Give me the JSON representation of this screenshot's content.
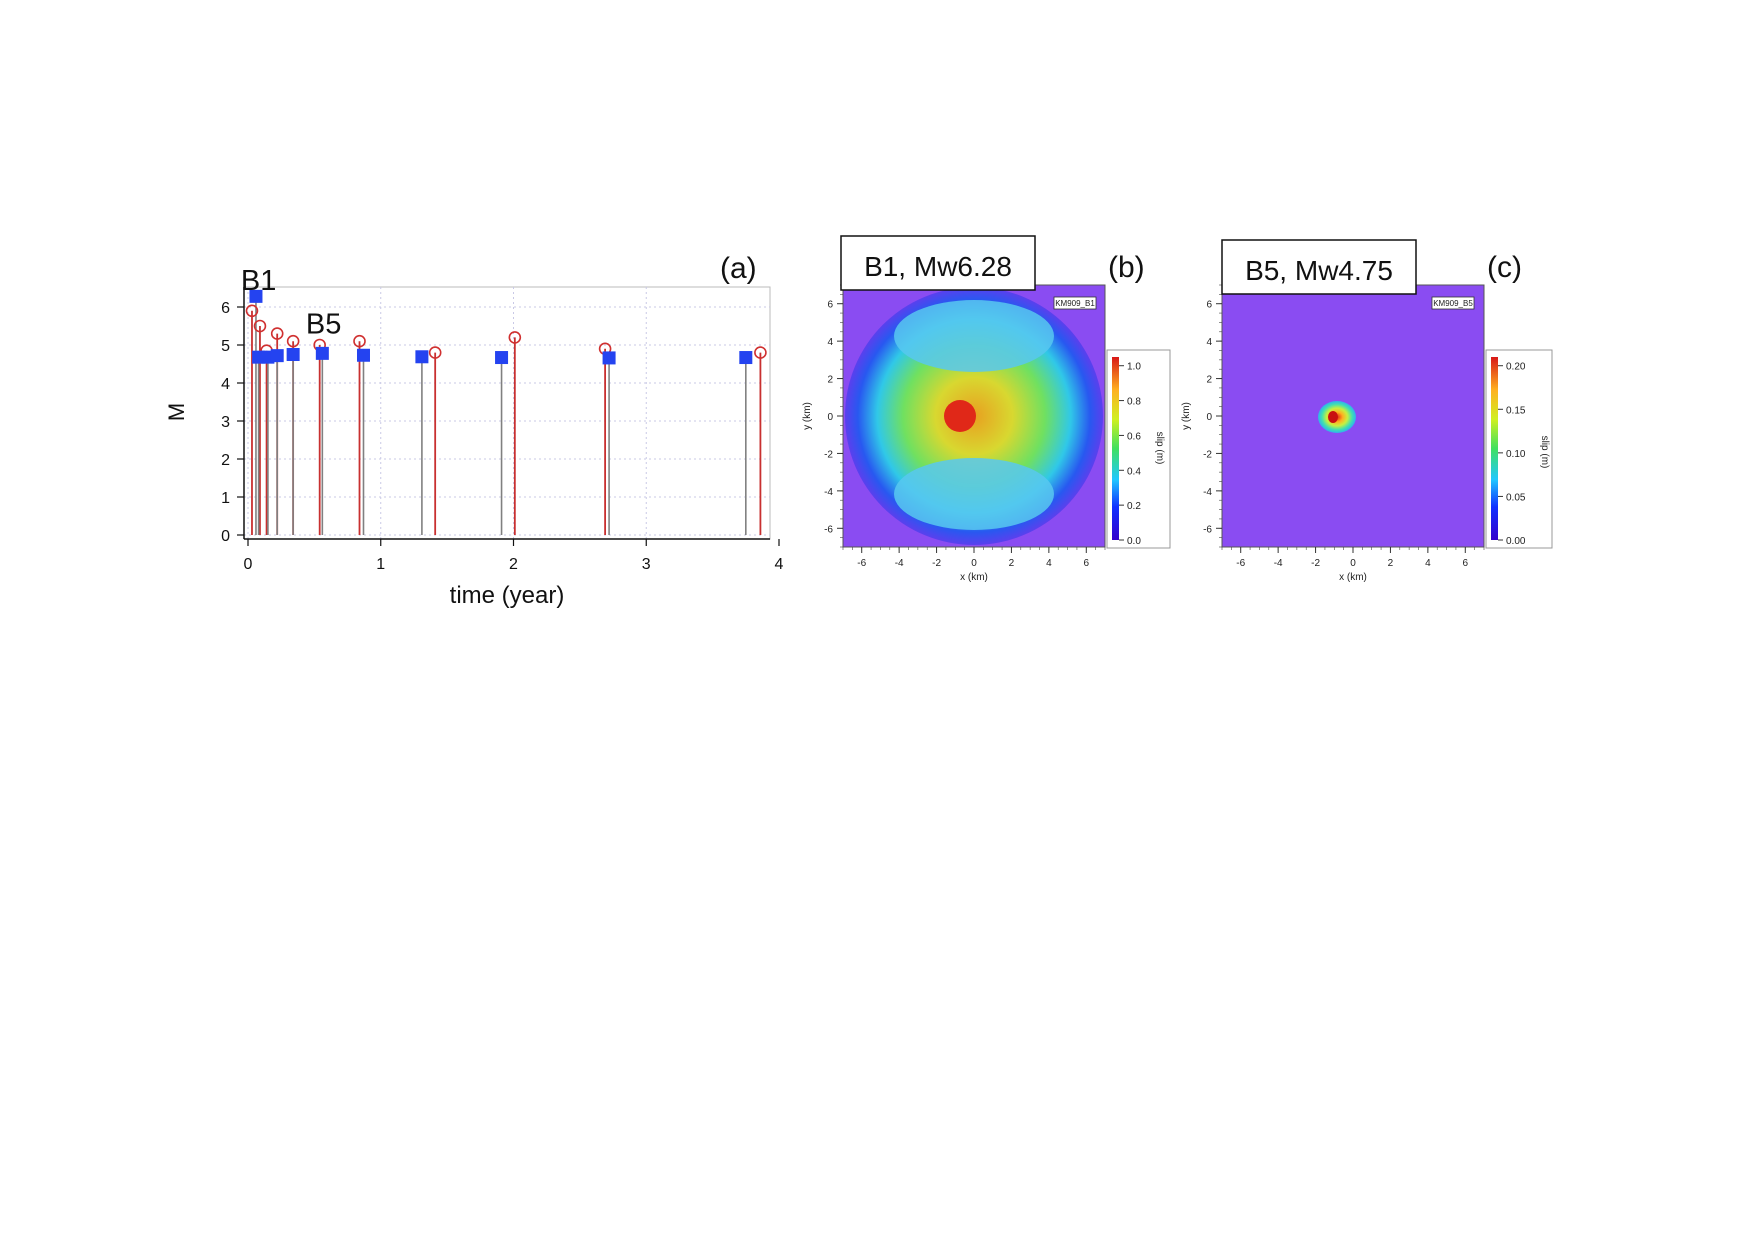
{
  "chart_data": [
    {
      "type": "stem",
      "panel_label": "(a)",
      "xlabel": "time (year)",
      "ylabel": "M",
      "xlim": [
        0,
        4
      ],
      "ylim": [
        0,
        6.5
      ],
      "xticks": [
        "0",
        "1",
        "2",
        "3",
        "4"
      ],
      "yticks": [
        "0",
        "1",
        "2",
        "3",
        "4",
        "5",
        "6"
      ],
      "grid": true,
      "annotations": [
        {
          "text": "B1",
          "x": 0.08,
          "y": 6.45
        },
        {
          "text": "B5",
          "x": 0.57,
          "y": 5.3
        }
      ],
      "series": [
        {
          "marker": "square-filled",
          "color": "#2443f0",
          "stem_color": "#808080",
          "points": [
            [
              0.06,
              6.28
            ],
            [
              0.08,
              4.68
            ],
            [
              0.15,
              4.68
            ],
            [
              0.22,
              4.72
            ],
            [
              0.34,
              4.75
            ],
            [
              0.56,
              4.78
            ],
            [
              0.87,
              4.73
            ],
            [
              1.31,
              4.69
            ],
            [
              1.91,
              4.67
            ],
            [
              2.72,
              4.66
            ],
            [
              3.75,
              4.67
            ]
          ]
        },
        {
          "marker": "circle-open",
          "color": "#d03030",
          "stem_color": "#c83030",
          "points": [
            [
              0.03,
              5.9
            ],
            [
              0.09,
              5.5
            ],
            [
              0.14,
              4.85
            ],
            [
              0.22,
              5.3
            ],
            [
              0.34,
              5.1
            ],
            [
              0.54,
              5.0
            ],
            [
              0.84,
              5.1
            ],
            [
              1.41,
              4.8
            ],
            [
              2.01,
              5.2
            ],
            [
              2.69,
              4.9
            ],
            [
              3.86,
              4.8
            ]
          ]
        }
      ]
    },
    {
      "type": "heatmap",
      "panel_label": "(b)",
      "title": "B1, Mw6.28",
      "inner_tag": "KM909_B1",
      "xlabel": "x (km)",
      "ylabel": "y (km)",
      "xlim": [
        -7,
        7
      ],
      "ylim": [
        -7,
        7
      ],
      "xticks": [
        "-6",
        "-4",
        "-2",
        "0",
        "2",
        "4",
        "6"
      ],
      "yticks": [
        "6",
        "4",
        "2",
        "0",
        "-2",
        "-4",
        "-6"
      ],
      "colorbar_label": "slip (m)",
      "colorbar_ticks": [
        "1.0",
        "0.8",
        "0.6",
        "0.4",
        "0.2",
        "0.0"
      ],
      "colorbar_range": [
        0,
        1.05
      ],
      "rupture_radius_km": 6.9,
      "peak_slip_center": [
        -0.8,
        0
      ]
    },
    {
      "type": "heatmap",
      "panel_label": "(c)",
      "title": "B5, Mw4.75",
      "inner_tag": "KM909_B5",
      "xlabel": "x (km)",
      "ylabel": "y (km)",
      "xlim": [
        -7,
        7
      ],
      "ylim": [
        -7,
        7
      ],
      "xticks": [
        "-6",
        "-4",
        "-2",
        "0",
        "2",
        "4",
        "6"
      ],
      "yticks": [
        "6",
        "4",
        "2",
        "0",
        "-2",
        "-4",
        "-6"
      ],
      "colorbar_label": "slip (m)",
      "colorbar_ticks": [
        "0.20",
        "0.15",
        "0.10",
        "0.05",
        "0.00"
      ],
      "colorbar_range": [
        0,
        0.21
      ],
      "rupture_radius_km": 1.0,
      "peak_slip_center": [
        -1.0,
        0
      ]
    }
  ]
}
